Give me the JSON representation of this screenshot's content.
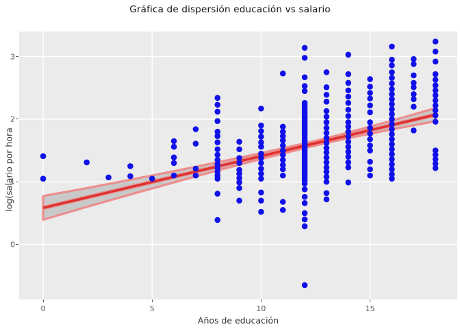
{
  "chart_data": {
    "type": "scatter",
    "title": "Gráfica de dispersión educación vs salario",
    "xlabel": "Años de educación",
    "ylabel": "log(salario por hora",
    "xlim": [
      -1.1,
      19.0
    ],
    "ylim": [
      -0.88,
      3.4
    ],
    "xticks": [
      0,
      5,
      10,
      15
    ],
    "yticks": [
      0,
      1,
      2,
      3
    ],
    "grid": true,
    "legend": "none",
    "colors": {
      "point": "#1010E8",
      "fit_line": "#E03131",
      "fit_glow": "#F08080",
      "band_fill": "#ADADAD",
      "band_edge": "#F08080",
      "panel_bg": "#EBEBEB",
      "grid": "#FFFFFF",
      "tick_text": "#555555",
      "title_text": "#111111"
    },
    "fit_line": {
      "x0": 0,
      "y0": 0.584,
      "x1": 18,
      "y1": 2.072,
      "slope": 0.083,
      "intercept": 0.584
    },
    "band": [
      {
        "x": 0,
        "lo": 0.394,
        "hi": 0.774
      },
      {
        "x": 2,
        "lo": 0.599,
        "hi": 0.899
      },
      {
        "x": 4,
        "lo": 0.797,
        "hi": 1.033
      },
      {
        "x": 6,
        "lo": 0.99,
        "hi": 1.17
      },
      {
        "x": 8,
        "lo": 1.181,
        "hi": 1.311
      },
      {
        "x": 10,
        "lo": 1.363,
        "hi": 1.459
      },
      {
        "x": 12,
        "lo": 1.538,
        "hi": 1.614
      },
      {
        "x": 13,
        "lo": 1.621,
        "hi": 1.697
      },
      {
        "x": 14,
        "lo": 1.697,
        "hi": 1.787
      },
      {
        "x": 16,
        "lo": 1.837,
        "hi": 1.977
      },
      {
        "x": 18,
        "lo": 1.967,
        "hi": 2.177
      }
    ],
    "points": [
      [
        0,
        1.41
      ],
      [
        0,
        1.05
      ],
      [
        2,
        1.31
      ],
      [
        3,
        1.07
      ],
      [
        4,
        1.25
      ],
      [
        4,
        1.09
      ],
      [
        5,
        1.05
      ],
      [
        6,
        1.65
      ],
      [
        6,
        1.56
      ],
      [
        6,
        1.39
      ],
      [
        6,
        1.3
      ],
      [
        6,
        1.1
      ],
      [
        7,
        1.84
      ],
      [
        7,
        1.61
      ],
      [
        7,
        1.21
      ],
      [
        7,
        1.1
      ],
      [
        8,
        2.34
      ],
      [
        8,
        2.23
      ],
      [
        8,
        2.12
      ],
      [
        8,
        1.97
      ],
      [
        8,
        1.8
      ],
      [
        8,
        1.73
      ],
      [
        8,
        1.63
      ],
      [
        8,
        1.52
      ],
      [
        8,
        1.43
      ],
      [
        8,
        1.35
      ],
      [
        8,
        1.28
      ],
      [
        8,
        1.22
      ],
      [
        8,
        1.16
      ],
      [
        8,
        1.1
      ],
      [
        8,
        1.05
      ],
      [
        8,
        0.81
      ],
      [
        8,
        0.39
      ],
      [
        9,
        1.64
      ],
      [
        9,
        1.52
      ],
      [
        9,
        1.38
      ],
      [
        9,
        1.3
      ],
      [
        9,
        1.19
      ],
      [
        9,
        1.13
      ],
      [
        9,
        1.06
      ],
      [
        9,
        0.99
      ],
      [
        9,
        0.9
      ],
      [
        9,
        0.7
      ],
      [
        10,
        2.17
      ],
      [
        10,
        1.9
      ],
      [
        10,
        1.81
      ],
      [
        10,
        1.72
      ],
      [
        10,
        1.63
      ],
      [
        10,
        1.56
      ],
      [
        10,
        1.45
      ],
      [
        10,
        1.38
      ],
      [
        10,
        1.3
      ],
      [
        10,
        1.21
      ],
      [
        10,
        1.13
      ],
      [
        10,
        1.05
      ],
      [
        10,
        0.83
      ],
      [
        10,
        0.7
      ],
      [
        10,
        0.52
      ],
      [
        11,
        2.73
      ],
      [
        11,
        1.88
      ],
      [
        11,
        1.8
      ],
      [
        11,
        1.73
      ],
      [
        11,
        1.66
      ],
      [
        11,
        1.58
      ],
      [
        11,
        1.5
      ],
      [
        11,
        1.43
      ],
      [
        11,
        1.35
      ],
      [
        11,
        1.27
      ],
      [
        11,
        1.2
      ],
      [
        11,
        1.1
      ],
      [
        11,
        0.68
      ],
      [
        11,
        0.55
      ],
      [
        12,
        3.14
      ],
      [
        12,
        2.98
      ],
      [
        12,
        2.67
      ],
      [
        12,
        2.53
      ],
      [
        12,
        2.45
      ],
      [
        12,
        2.26
      ],
      [
        12,
        2.22
      ],
      [
        12,
        2.18
      ],
      [
        12,
        2.14
      ],
      [
        12,
        2.1
      ],
      [
        12,
        2.06
      ],
      [
        12,
        2.02
      ],
      [
        12,
        1.98
      ],
      [
        12,
        1.94
      ],
      [
        12,
        1.9
      ],
      [
        12,
        1.86
      ],
      [
        12,
        1.82
      ],
      [
        12,
        1.78
      ],
      [
        12,
        1.74
      ],
      [
        12,
        1.7
      ],
      [
        12,
        1.66
      ],
      [
        12,
        1.62
      ],
      [
        12,
        1.58
      ],
      [
        12,
        1.54
      ],
      [
        12,
        1.5
      ],
      [
        12,
        1.46
      ],
      [
        12,
        1.42
      ],
      [
        12,
        1.38
      ],
      [
        12,
        1.34
      ],
      [
        12,
        1.3
      ],
      [
        12,
        1.26
      ],
      [
        12,
        1.22
      ],
      [
        12,
        1.18
      ],
      [
        12,
        1.14
      ],
      [
        12,
        1.1
      ],
      [
        12,
        1.06
      ],
      [
        12,
        1.02
      ],
      [
        12,
        0.97
      ],
      [
        12,
        0.88
      ],
      [
        12,
        0.76
      ],
      [
        12,
        0.66
      ],
      [
        12,
        0.5
      ],
      [
        12,
        0.4
      ],
      [
        12,
        0.29
      ],
      [
        12,
        -0.65
      ],
      [
        13,
        2.75
      ],
      [
        13,
        2.51
      ],
      [
        13,
        2.39
      ],
      [
        13,
        2.28
      ],
      [
        13,
        2.13
      ],
      [
        13,
        2.04
      ],
      [
        13,
        1.95
      ],
      [
        13,
        1.86
      ],
      [
        13,
        1.78
      ],
      [
        13,
        1.7
      ],
      [
        13,
        1.62
      ],
      [
        13,
        1.54
      ],
      [
        13,
        1.47
      ],
      [
        13,
        1.39
      ],
      [
        13,
        1.31
      ],
      [
        13,
        1.23
      ],
      [
        13,
        1.16
      ],
      [
        13,
        1.08
      ],
      [
        13,
        1.0
      ],
      [
        13,
        0.82
      ],
      [
        13,
        0.72
      ],
      [
        14,
        3.03
      ],
      [
        14,
        2.72
      ],
      [
        14,
        2.58
      ],
      [
        14,
        2.46
      ],
      [
        14,
        2.36
      ],
      [
        14,
        2.26
      ],
      [
        14,
        2.15
      ],
      [
        14,
        2.05
      ],
      [
        14,
        1.95
      ],
      [
        14,
        1.88
      ],
      [
        14,
        1.8
      ],
      [
        14,
        1.72
      ],
      [
        14,
        1.64
      ],
      [
        14,
        1.56
      ],
      [
        14,
        1.48
      ],
      [
        14,
        1.4
      ],
      [
        14,
        1.31
      ],
      [
        14,
        1.23
      ],
      [
        14,
        0.99
      ],
      [
        15,
        2.64
      ],
      [
        15,
        2.52
      ],
      [
        15,
        2.42
      ],
      [
        15,
        2.33
      ],
      [
        15,
        2.22
      ],
      [
        15,
        2.11
      ],
      [
        15,
        1.95
      ],
      [
        15,
        1.86
      ],
      [
        15,
        1.77
      ],
      [
        15,
        1.68
      ],
      [
        15,
        1.58
      ],
      [
        15,
        1.5
      ],
      [
        15,
        1.32
      ],
      [
        15,
        1.2
      ],
      [
        15,
        1.1
      ],
      [
        16,
        3.16
      ],
      [
        16,
        2.95
      ],
      [
        16,
        2.86
      ],
      [
        16,
        2.75
      ],
      [
        16,
        2.66
      ],
      [
        16,
        2.57
      ],
      [
        16,
        2.48
      ],
      [
        16,
        2.4
      ],
      [
        16,
        2.32
      ],
      [
        16,
        2.24
      ],
      [
        16,
        2.16
      ],
      [
        16,
        2.08
      ],
      [
        16,
        2.0
      ],
      [
        16,
        1.92
      ],
      [
        16,
        1.84
      ],
      [
        16,
        1.76
      ],
      [
        16,
        1.68
      ],
      [
        16,
        1.6
      ],
      [
        16,
        1.52
      ],
      [
        16,
        1.44
      ],
      [
        16,
        1.36
      ],
      [
        16,
        1.28
      ],
      [
        16,
        1.2
      ],
      [
        16,
        1.12
      ],
      [
        16,
        1.05
      ],
      [
        17,
        2.96
      ],
      [
        17,
        2.88
      ],
      [
        17,
        2.7
      ],
      [
        17,
        2.58
      ],
      [
        17,
        2.51
      ],
      [
        17,
        2.4
      ],
      [
        17,
        2.32
      ],
      [
        17,
        2.2
      ],
      [
        17,
        1.82
      ],
      [
        18,
        3.24
      ],
      [
        18,
        3.08
      ],
      [
        18,
        2.92
      ],
      [
        18,
        2.72
      ],
      [
        18,
        2.63
      ],
      [
        18,
        2.54
      ],
      [
        18,
        2.46
      ],
      [
        18,
        2.38
      ],
      [
        18,
        2.3
      ],
      [
        18,
        2.22
      ],
      [
        18,
        2.14
      ],
      [
        18,
        2.06
      ],
      [
        18,
        1.96
      ],
      [
        18,
        1.5
      ],
      [
        18,
        1.43
      ],
      [
        18,
        1.36
      ],
      [
        18,
        1.29
      ],
      [
        18,
        1.22
      ]
    ]
  }
}
